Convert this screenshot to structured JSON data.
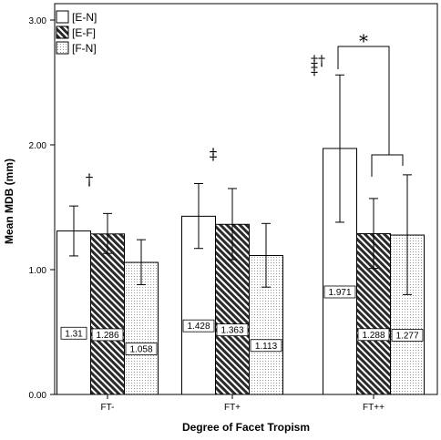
{
  "chart_data": {
    "type": "bar",
    "categories": [
      "FT-",
      "FT+",
      "FT++"
    ],
    "series": [
      {
        "name": "[E-N]",
        "values": [
          1.31,
          1.428,
          1.971
        ],
        "error_low": [
          1.11,
          1.17,
          1.38
        ],
        "error_high": [
          1.51,
          1.69,
          2.56
        ],
        "fill": "white"
      },
      {
        "name": "[E-F]",
        "values": [
          1.286,
          1.363,
          1.288
        ],
        "error_low": [
          1.13,
          1.08,
          1.01
        ],
        "error_high": [
          1.45,
          1.65,
          1.57
        ],
        "fill": "hatch"
      },
      {
        "name": "[F-N]",
        "values": [
          1.058,
          1.113,
          1.277
        ],
        "error_low": [
          0.88,
          0.86,
          0.8
        ],
        "error_high": [
          1.24,
          1.37,
          1.76
        ],
        "fill": "dots"
      }
    ],
    "data_labels": [
      [
        "1.31",
        "1.286",
        "1.058"
      ],
      [
        "1.428",
        "1.363",
        "1.113"
      ],
      [
        "1.971",
        "1.288",
        "1.277"
      ]
    ],
    "xlabel": "Degree of Facet Tropism",
    "ylabel": "Mean MDB (mm)",
    "ylim": [
      0,
      3
    ],
    "yticks": [
      "0.00",
      "1.00",
      "2.00",
      "3.00"
    ],
    "legend_position": "top-left",
    "annotations": {
      "ft_minus": "†",
      "ft_plus": "‡",
      "ft_plusplus_top": "‡†",
      "ft_plusplus_bottom": "‡",
      "star": "*"
    }
  }
}
